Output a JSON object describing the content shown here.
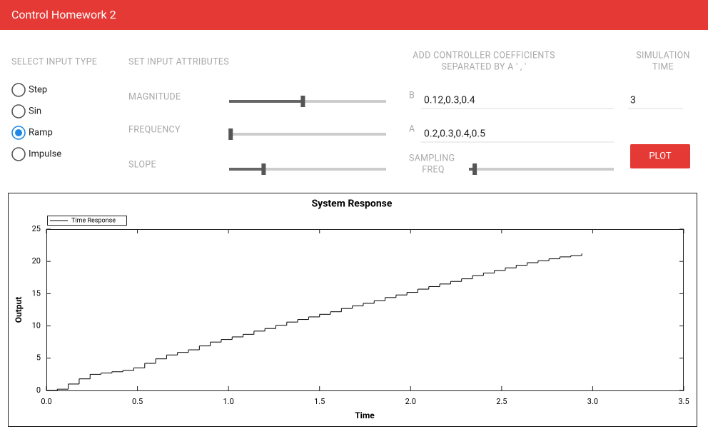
{
  "header": {
    "title": "Control Homework 2"
  },
  "input_type": {
    "label": "SELECT INPUT TYPE",
    "options": [
      "Step",
      "Sin",
      "Ramp",
      "Impulse"
    ],
    "selected": 2
  },
  "attributes": {
    "label": "SET INPUT ATTRIBUTES",
    "sliders": [
      {
        "label": "MAGNITUDE",
        "value": 0.47
      },
      {
        "label": "FREQUENCY",
        "value": 0.01
      },
      {
        "label": "SLOPE",
        "value": 0.22
      }
    ]
  },
  "coefficients": {
    "label": [
      "ADD CONTROLLER COEFFICIENTS",
      "SEPARATED BY A ' , '"
    ],
    "fields": [
      {
        "label": "B",
        "value": "0.12,0.3,0.4"
      },
      {
        "label": "A",
        "value": "0.2,0.3,0.4,0.5"
      }
    ],
    "sampling": {
      "label": [
        "SAMPLING",
        "FREQ"
      ],
      "value": 0.04
    }
  },
  "simulation": {
    "label": [
      "SIMULATION",
      "TIME"
    ],
    "value": "3"
  },
  "plot_button": "PLOT",
  "chart_data": {
    "type": "step",
    "title": "System Response",
    "x_label": "Time",
    "y_label": "Output",
    "x": [
      0,
      0.06,
      0.12,
      0.18,
      0.24,
      0.3,
      0.36,
      0.42,
      0.48,
      0.54,
      0.6,
      0.66,
      0.72,
      0.78,
      0.84,
      0.9,
      0.96,
      1.02,
      1.08,
      1.14,
      1.2,
      1.26,
      1.32,
      1.38,
      1.44,
      1.5,
      1.56,
      1.62,
      1.68,
      1.74,
      1.8,
      1.86,
      1.92,
      1.98,
      2.04,
      2.1,
      2.16,
      2.22,
      2.28,
      2.34,
      2.4,
      2.46,
      2.52,
      2.58,
      2.64,
      2.7,
      2.76,
      2.82,
      2.88,
      2.94
    ],
    "series": [
      {
        "name": "Time Response",
        "color": "#000000",
        "values": [
          0,
          0.2,
          1.0,
          1.8,
          2.5,
          2.7,
          2.9,
          3.1,
          3.5,
          4.2,
          4.9,
          5.5,
          5.9,
          6.3,
          6.9,
          7.5,
          7.9,
          8.3,
          8.7,
          9.2,
          9.6,
          10.1,
          10.6,
          11.0,
          11.4,
          11.8,
          12.2,
          12.7,
          13.1,
          13.5,
          13.9,
          14.4,
          14.8,
          15.2,
          15.7,
          16.1,
          16.5,
          16.9,
          17.3,
          17.8,
          18.2,
          18.6,
          19.0,
          19.4,
          19.8,
          20.1,
          20.4,
          20.7,
          20.9,
          21.2
        ]
      }
    ],
    "xlim": [
      0,
      3.5
    ],
    "ylim": [
      0,
      25
    ],
    "xticks": [
      {
        "value": 0,
        "label": "0.0"
      },
      0.5,
      {
        "value": 1,
        "label": "1.0"
      },
      1.5,
      {
        "value": 2,
        "label": "2.0"
      },
      2.5,
      {
        "value": 3,
        "label": "3.0"
      },
      3.5
    ],
    "yticks": [
      0,
      5,
      10,
      15,
      20,
      25
    ],
    "legend": "top-left"
  }
}
